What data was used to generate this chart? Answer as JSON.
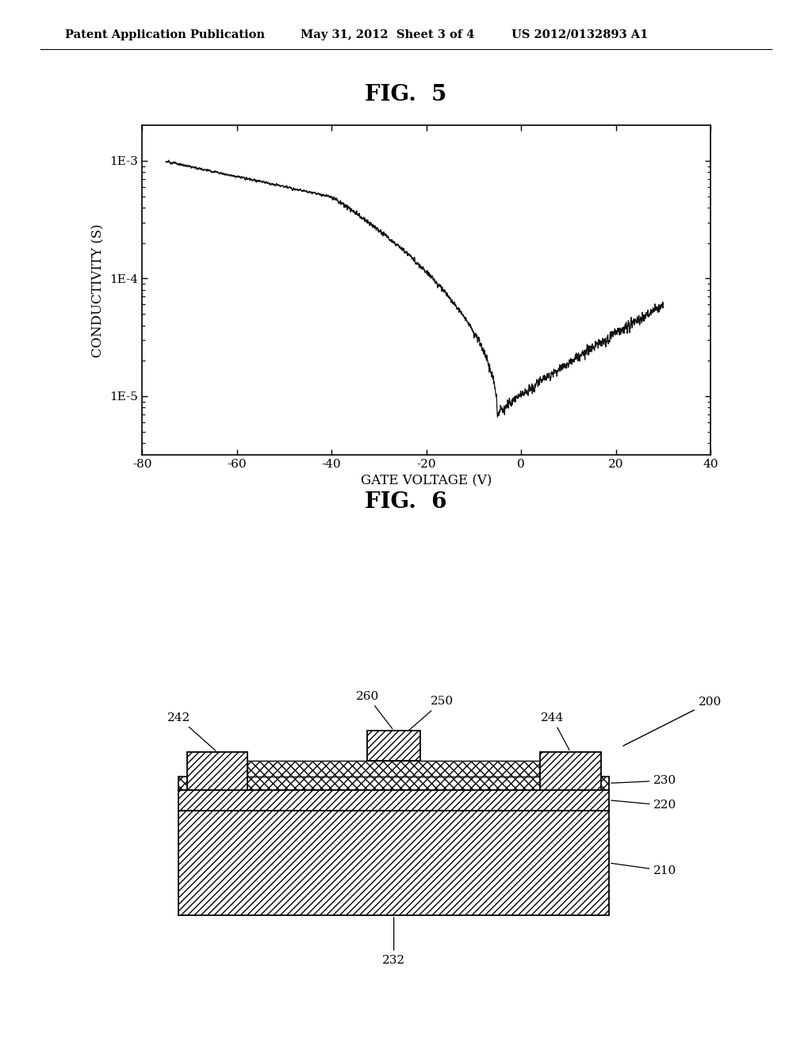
{
  "header_left": "Patent Application Publication",
  "header_center": "May 31, 2012  Sheet 3 of 4",
  "header_right": "US 2012/0132893 A1",
  "fig5_title": "FIG.  5",
  "fig6_title": "FIG.  6",
  "xlabel": "GATE VOLTAGE (V)",
  "ylabel": "CONDUCTIVITY (S)",
  "xmin": -80,
  "xmax": 40,
  "background_color": "#ffffff",
  "line_color": "#111111"
}
